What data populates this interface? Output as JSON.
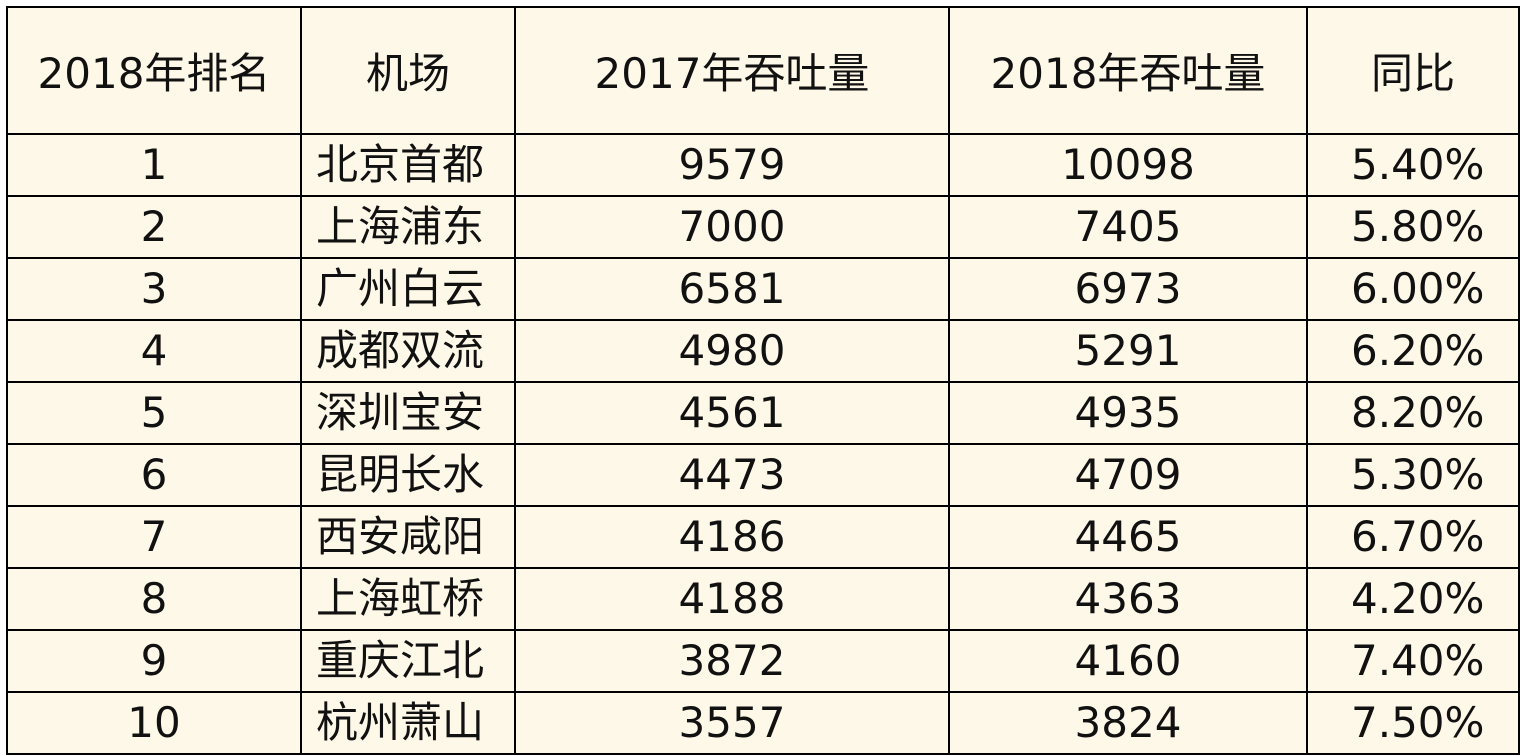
{
  "chart_data": {
    "type": "table",
    "columns": [
      "2018年排名",
      "机场",
      "2017年吞吐量",
      "2018年吞吐量",
      "同比"
    ],
    "rows": [
      [
        "1",
        "北京首都",
        "9579",
        "10098",
        "5.40%"
      ],
      [
        "2",
        "上海浦东",
        "7000",
        "7405",
        "5.80%"
      ],
      [
        "3",
        "广州白云",
        "6581",
        "6973",
        "6.00%"
      ],
      [
        "4",
        "成都双流",
        "4980",
        "5291",
        "6.20%"
      ],
      [
        "5",
        "深圳宝安",
        "4561",
        "4935",
        "8.20%"
      ],
      [
        "6",
        "昆明长水",
        "4473",
        "4709",
        "5.30%"
      ],
      [
        "7",
        "西安咸阳",
        "4186",
        "4465",
        "6.70%"
      ],
      [
        "8",
        "上海虹桥",
        "4188",
        "4363",
        "4.20%"
      ],
      [
        "9",
        "重庆江北",
        "3872",
        "4160",
        "7.40%"
      ],
      [
        "10",
        "杭州萧山",
        "3557",
        "3824",
        "7.50%"
      ]
    ]
  },
  "colors": {
    "background": "#fef8e8",
    "border": "#000000",
    "text": "#111111"
  }
}
